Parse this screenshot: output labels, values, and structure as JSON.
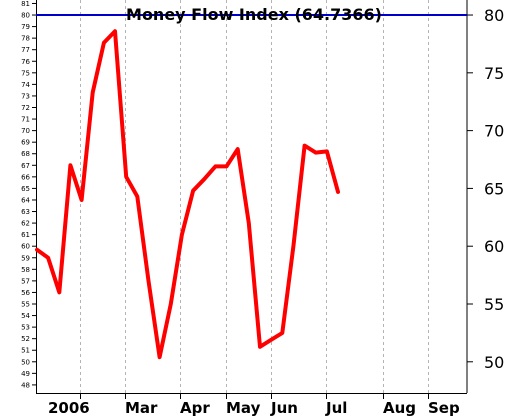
{
  "chart_data": {
    "type": "line",
    "title": "Money Flow Index (64.7366)",
    "ylim": [
      47.3,
      81.3
    ],
    "left_ticks": [
      "48",
      "49",
      "50",
      "51",
      "52",
      "53",
      "54",
      "55",
      "56",
      "57",
      "58",
      "59",
      "60",
      "61",
      "62",
      "63",
      "64",
      "65",
      "66",
      "67",
      "68",
      "69",
      "70",
      "71",
      "72",
      "73",
      "74",
      "75",
      "76",
      "77",
      "78",
      "79",
      "80",
      "81"
    ],
    "right_ticks": [
      "50",
      "55",
      "60",
      "65",
      "70",
      "75",
      "80"
    ],
    "reference_line": {
      "value": 80,
      "color": "#0000cc"
    },
    "series_color": "#ff0000",
    "months": [
      "2006",
      "Mar",
      "Apr",
      "May",
      "Jun",
      "Jul",
      "Aug",
      "Sep"
    ],
    "series": [
      {
        "values": [
          59.7,
          59.0,
          56.0,
          67.0,
          64.0,
          73.3,
          77.6,
          78.6,
          66.0,
          64.3,
          57.0,
          50.4,
          55.0,
          61.0,
          64.8,
          65.8,
          66.9,
          66.9,
          68.4,
          62.0,
          51.3,
          51.9,
          52.5,
          60.0,
          68.7,
          68.1,
          68.2,
          64.7
        ]
      }
    ]
  }
}
